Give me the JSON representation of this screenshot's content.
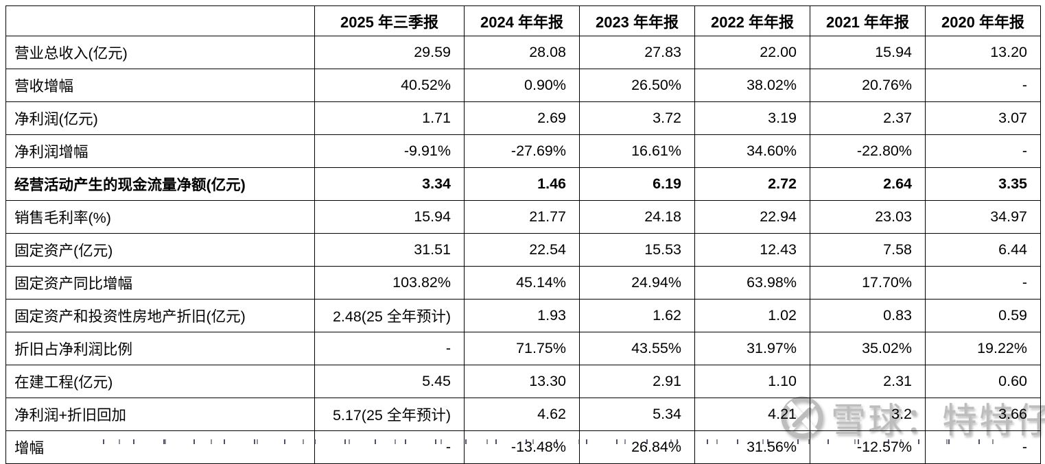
{
  "colors": {
    "highlight_red": "#ff0000",
    "text": "#000000",
    "border": "#000000",
    "background": "#ffffff",
    "watermark_gray": "#bdbdbd"
  },
  "watermark": {
    "logo_icon": "xueqiu-snowball-logo",
    "brand": "雪球",
    "separator": "：",
    "username": "特特仔"
  },
  "chart_data": {
    "type": "table",
    "columns": [
      "",
      "2025 年三季报",
      "2024 年年报",
      "2023 年年报",
      "2022 年年报",
      "2021 年年报",
      "2020 年年报"
    ],
    "rows": [
      {
        "label": "营业总收入(亿元)",
        "bold": false,
        "values": [
          {
            "text": "29.59"
          },
          {
            "text": "28.08"
          },
          {
            "text": "27.83"
          },
          {
            "text": "22.00"
          },
          {
            "text": "15.94"
          },
          {
            "text": "13.20"
          }
        ]
      },
      {
        "label": "营收增幅",
        "bold": false,
        "values": [
          {
            "text": "40.52%",
            "red": true
          },
          {
            "text": "0.90%"
          },
          {
            "text": "26.50%"
          },
          {
            "text": "38.02%",
            "red": true
          },
          {
            "text": "20.76%"
          },
          {
            "text": "-"
          }
        ]
      },
      {
        "label": "净利润(亿元)",
        "bold": false,
        "values": [
          {
            "text": "1.71"
          },
          {
            "text": "2.69"
          },
          {
            "text": "3.72"
          },
          {
            "text": "3.19"
          },
          {
            "text": "2.37"
          },
          {
            "text": "3.07"
          }
        ]
      },
      {
        "label": "净利润增幅",
        "bold": false,
        "values": [
          {
            "text": "-9.91%",
            "red": true
          },
          {
            "text": "-27.69%"
          },
          {
            "text": "16.61%"
          },
          {
            "text": "34.60%",
            "red": true
          },
          {
            "text": "-22.80%"
          },
          {
            "text": "-"
          }
        ]
      },
      {
        "label": "经营活动产生的现金流量净额(亿元)",
        "bold": true,
        "values": [
          {
            "text": "3.34"
          },
          {
            "text": "1.46"
          },
          {
            "text": "6.19"
          },
          {
            "text": "2.72"
          },
          {
            "text": "2.64"
          },
          {
            "text": "3.35"
          }
        ]
      },
      {
        "label": "销售毛利率(%)",
        "bold": false,
        "values": [
          {
            "text": "15.94"
          },
          {
            "text": "21.77"
          },
          {
            "text": "24.18",
            "red": true
          },
          {
            "text": "22.94"
          },
          {
            "text": "23.03"
          },
          {
            "text": "34.97"
          }
        ]
      },
      {
        "label": "固定资产(亿元)",
        "bold": false,
        "values": [
          {
            "text": "31.51"
          },
          {
            "text": "22.54"
          },
          {
            "text": "15.53"
          },
          {
            "text": "12.43"
          },
          {
            "text": "7.58"
          },
          {
            "text": "6.44"
          }
        ]
      },
      {
        "label": "固定资产同比增幅",
        "bold": false,
        "values": [
          {
            "text": "103.82%",
            "red": true
          },
          {
            "text": "45.14%"
          },
          {
            "text": "24.94%"
          },
          {
            "text": "63.98%"
          },
          {
            "text": "17.70%"
          },
          {
            "text": "-"
          }
        ]
      },
      {
        "label": "固定资产和投资性房地产折旧(亿元)",
        "bold": false,
        "values": [
          {
            "text": "2.48(25 全年预计)",
            "red": true
          },
          {
            "text": "1.93"
          },
          {
            "text": "1.62"
          },
          {
            "text": "1.02"
          },
          {
            "text": "0.83"
          },
          {
            "text": "0.59"
          }
        ]
      },
      {
        "label": "折旧占净利润比例",
        "bold": false,
        "values": [
          {
            "text": "-"
          },
          {
            "text": "71.75%",
            "red": true
          },
          {
            "text": "43.55%"
          },
          {
            "text": "31.97%"
          },
          {
            "text": "35.02%"
          },
          {
            "text": "19.22%"
          }
        ]
      },
      {
        "label": "在建工程(亿元)",
        "bold": false,
        "values": [
          {
            "text": "5.45"
          },
          {
            "text": "13.30"
          },
          {
            "text": "2.91"
          },
          {
            "text": "1.10"
          },
          {
            "text": "2.31"
          },
          {
            "text": "0.60"
          }
        ]
      },
      {
        "label": "净利润+折旧回加",
        "bold": false,
        "values": [
          {
            "text": "5.17(25 全年预计)",
            "red": true
          },
          {
            "text": "4.62"
          },
          {
            "text": "5.34"
          },
          {
            "text": "4.21"
          },
          {
            "text": "3.2"
          },
          {
            "text": "3.66"
          }
        ]
      },
      {
        "label": "增幅",
        "bold": false,
        "values": [
          {
            "text": "-"
          },
          {
            "text": "-13.48%"
          },
          {
            "text": "26.84%"
          },
          {
            "text": "31.56%",
            "red": true
          },
          {
            "text": "-12.57%"
          },
          {
            "text": "-"
          }
        ]
      }
    ]
  }
}
